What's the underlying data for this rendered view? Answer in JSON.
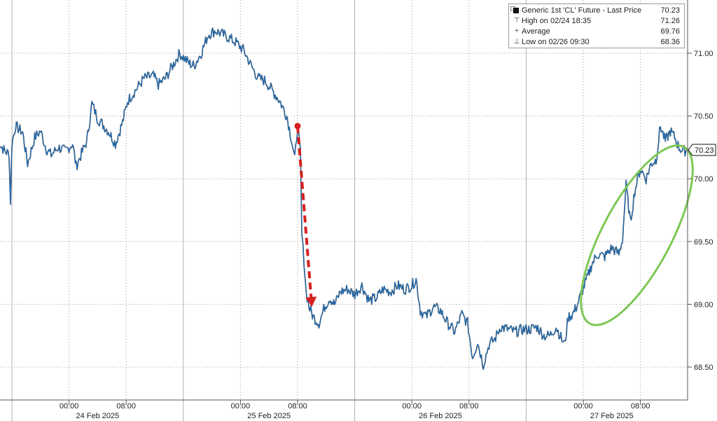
{
  "chart_data": {
    "type": "line",
    "title": "",
    "xlabel": "",
    "ylabel": "",
    "ylim": [
      68.28,
      71.3
    ],
    "y_ticks": [
      "71.00",
      "70.50",
      "70.00",
      "69.50",
      "69.00",
      "68.50"
    ],
    "y_tick_values": [
      71.0,
      70.5,
      70.0,
      69.5,
      69.0,
      68.5
    ],
    "time_tick_labels": [
      "00:00",
      "08:00",
      "00:00",
      "08:00",
      "00:00",
      "08:00",
      "00:00",
      "08:00"
    ],
    "time_tick_hours": [
      0,
      8,
      24,
      32,
      48,
      56,
      72,
      80
    ],
    "date_labels": [
      "24 Feb 2025",
      "25 Feb 2025",
      "26 Feb 2025",
      "27 Feb 2025"
    ],
    "date_label_hours": [
      4,
      28,
      52,
      76
    ],
    "session_divider_hours": [
      -8,
      16,
      40,
      64
    ],
    "x_range_hours": [
      -10,
      90
    ],
    "grid": true,
    "legend_position": "top-right",
    "last_price_label": "70.23",
    "last_price": 70.23,
    "series": [
      {
        "name": "Generic 1st 'CL' Future - Last Price",
        "color": "#1f77c8",
        "points": [
          [
            -10.0,
            70.3
          ],
          [
            -9.0,
            70.22
          ],
          [
            -8.4,
            70.2
          ],
          [
            -8.2,
            69.82
          ],
          [
            -8.0,
            70.28
          ],
          [
            -7.5,
            70.42
          ],
          [
            -6.5,
            70.37
          ],
          [
            -5.8,
            70.12
          ],
          [
            -4.8,
            70.33
          ],
          [
            -4.0,
            70.38
          ],
          [
            -3.2,
            70.24
          ],
          [
            -2.5,
            70.19
          ],
          [
            -1.5,
            70.25
          ],
          [
            -0.5,
            70.22
          ],
          [
            0.5,
            70.28
          ],
          [
            1.0,
            70.1
          ],
          [
            2.5,
            70.3
          ],
          [
            3.2,
            70.6
          ],
          [
            4.0,
            70.48
          ],
          [
            5.5,
            70.38
          ],
          [
            6.5,
            70.28
          ],
          [
            7.5,
            70.45
          ],
          [
            8.2,
            70.62
          ],
          [
            9.5,
            70.72
          ],
          [
            10.5,
            70.8
          ],
          [
            11.8,
            70.82
          ],
          [
            12.5,
            70.75
          ],
          [
            13.5,
            70.8
          ],
          [
            14.5,
            70.9
          ],
          [
            15.5,
            71.0
          ],
          [
            16.8,
            70.92
          ],
          [
            17.5,
            70.9
          ],
          [
            18.5,
            71.0
          ],
          [
            19.5,
            71.15
          ],
          [
            20.5,
            71.18
          ],
          [
            21.5,
            71.15
          ],
          [
            22.5,
            71.12
          ],
          [
            23.5,
            71.08
          ],
          [
            24.5,
            71.02
          ],
          [
            25.5,
            70.9
          ],
          [
            26.5,
            70.8
          ],
          [
            27.5,
            70.78
          ],
          [
            28.5,
            70.7
          ],
          [
            29.5,
            70.62
          ],
          [
            30.5,
            70.5
          ],
          [
            31.2,
            70.3
          ],
          [
            31.6,
            70.15
          ],
          [
            32.0,
            70.42
          ],
          [
            32.4,
            70.2
          ],
          [
            32.6,
            69.55
          ],
          [
            32.9,
            69.35
          ],
          [
            33.2,
            69.1
          ],
          [
            33.6,
            68.98
          ],
          [
            34.2,
            68.9
          ],
          [
            35.0,
            68.85
          ],
          [
            35.8,
            68.98
          ],
          [
            36.5,
            69.05
          ],
          [
            37.2,
            69.0
          ],
          [
            38.0,
            69.1
          ],
          [
            39.0,
            69.12
          ],
          [
            40.0,
            69.08
          ],
          [
            41.0,
            69.15
          ],
          [
            42.0,
            69.03
          ],
          [
            43.0,
            69.05
          ],
          [
            44.0,
            69.12
          ],
          [
            45.0,
            69.1
          ],
          [
            46.0,
            69.15
          ],
          [
            47.0,
            69.12
          ],
          [
            48.0,
            69.15
          ],
          [
            48.6,
            69.2
          ],
          [
            49.2,
            68.95
          ],
          [
            50.0,
            68.9
          ],
          [
            51.0,
            68.98
          ],
          [
            52.0,
            68.95
          ],
          [
            53.0,
            68.85
          ],
          [
            54.0,
            68.78
          ],
          [
            55.0,
            68.92
          ],
          [
            55.8,
            68.85
          ],
          [
            56.5,
            68.58
          ],
          [
            57.2,
            68.7
          ],
          [
            58.0,
            68.52
          ],
          [
            58.8,
            68.68
          ],
          [
            59.6,
            68.72
          ],
          [
            60.4,
            68.82
          ],
          [
            61.5,
            68.8
          ],
          [
            62.5,
            68.78
          ],
          [
            63.5,
            68.8
          ],
          [
            64.5,
            68.8
          ],
          [
            65.5,
            68.82
          ],
          [
            66.5,
            68.75
          ],
          [
            67.3,
            68.75
          ],
          [
            68.2,
            68.82
          ],
          [
            69.0,
            68.72
          ],
          [
            69.4,
            68.68
          ],
          [
            69.9,
            68.9
          ],
          [
            70.5,
            68.92
          ],
          [
            71.2,
            69.0
          ],
          [
            71.8,
            69.1
          ],
          [
            72.5,
            69.2
          ],
          [
            73.2,
            69.32
          ],
          [
            74.0,
            69.4
          ],
          [
            75.0,
            69.38
          ],
          [
            76.0,
            69.45
          ],
          [
            77.0,
            69.4
          ],
          [
            77.5,
            69.52
          ],
          [
            78.0,
            69.95
          ],
          [
            78.6,
            69.65
          ],
          [
            79.2,
            69.9
          ],
          [
            80.0,
            70.08
          ],
          [
            80.8,
            70.0
          ],
          [
            81.5,
            70.12
          ],
          [
            82.2,
            70.15
          ],
          [
            82.8,
            70.42
          ],
          [
            83.5,
            70.3
          ],
          [
            84.2,
            70.38
          ],
          [
            84.8,
            70.33
          ],
          [
            85.4,
            70.25
          ],
          [
            86.0,
            70.22
          ],
          [
            86.5,
            70.23
          ]
        ]
      }
    ],
    "legend_rows": [
      {
        "symbol": "■",
        "label": "Generic 1st 'CL' Future - Last Price",
        "value": "70.23"
      },
      {
        "symbol": "⊤",
        "label": "High on 02/24 18:35",
        "value": "71.26"
      },
      {
        "symbol": "+",
        "label": "Average",
        "value": "69.76"
      },
      {
        "symbol": "⊥",
        "label": "Low on 02/26 09:30",
        "value": "68.36"
      }
    ],
    "annotations": [
      {
        "type": "arrow",
        "color": "#d62020",
        "style": "dashed",
        "from": [
          32.0,
          70.42
        ],
        "to": [
          34.0,
          68.98
        ]
      },
      {
        "type": "ellipse",
        "color": "#7dc855",
        "center": [
          79.5,
          69.55
        ],
        "radii_hours_price": [
          14.0,
          0.98
        ],
        "rotation_deg": -62
      }
    ]
  }
}
